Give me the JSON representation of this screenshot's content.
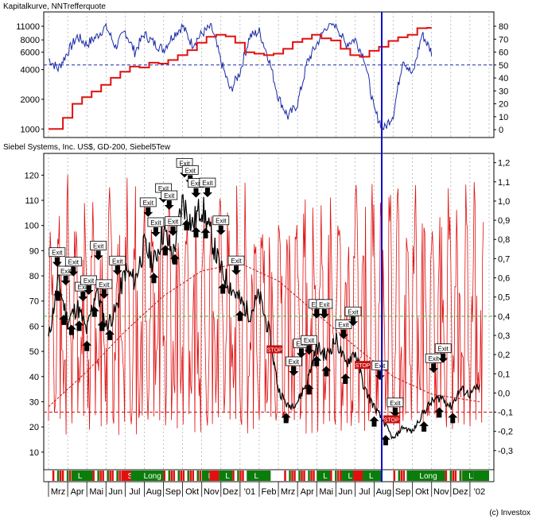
{
  "chart_data": [
    {
      "type": "line",
      "title": "Kapitalkurve, NNTrefferquote",
      "y_left": {
        "scale": "log",
        "range": [
          900,
          14000
        ],
        "ticks": [
          1000,
          2000,
          4000,
          6000,
          8000,
          11000
        ],
        "tick_labels": [
          "1000",
          "2000",
          "4000",
          "6000",
          "8000",
          "11000"
        ]
      },
      "y_right": {
        "range": [
          -3,
          88
        ],
        "ticks": [
          0,
          10,
          20,
          30,
          40,
          50,
          60,
          70,
          80
        ],
        "tick_labels": [
          "0",
          "10",
          "20",
          "30",
          "40",
          "50",
          "60",
          "70",
          "80"
        ]
      },
      "reference_lines": [
        {
          "axis": "right",
          "value": 50,
          "style": "dashed",
          "color": "#1a2aa6"
        }
      ],
      "series": [
        {
          "axis": "left",
          "color": "#e01010",
          "x": [
            0,
            0.5,
            1,
            1.5,
            2,
            2.5,
            3,
            3.5,
            4,
            4.5,
            5,
            5.5,
            6,
            6.5,
            7,
            7.5,
            8,
            8.5,
            9,
            9.5,
            10,
            10.5,
            11,
            11.5,
            12,
            12.5,
            13,
            13.5,
            14,
            14.5,
            15,
            15.5,
            16,
            16.5,
            17,
            17.5,
            18,
            18.5,
            19,
            19.5,
            20
          ],
          "y": [
            1000,
            1000,
            1300,
            1800,
            2100,
            2400,
            2800,
            3300,
            3800,
            4300,
            4200,
            4700,
            4600,
            5000,
            5600,
            6300,
            7500,
            8600,
            9000,
            8700,
            7500,
            6000,
            5800,
            5600,
            5800,
            6500,
            7600,
            8200,
            9000,
            8300,
            7900,
            6500,
            5600,
            5400,
            6200,
            6800,
            7800,
            8500,
            9000,
            10500,
            10600
          ]
        },
        {
          "axis": "right",
          "color": "#1a2aa6",
          "x": [
            0,
            0.5,
            1,
            1.5,
            2,
            2.5,
            3,
            3.5,
            4,
            4.5,
            5,
            5.5,
            6,
            6.5,
            7,
            7.5,
            8,
            8.5,
            9,
            9.5,
            10,
            10.5,
            11,
            11.5,
            12,
            12.5,
            13,
            13.5,
            14,
            14.5,
            15,
            15.5,
            16,
            16.5,
            17,
            17.5,
            18,
            18.5,
            19,
            19.5,
            20
          ],
          "y": [
            55,
            47,
            60,
            72,
            66,
            72,
            80,
            64,
            76,
            60,
            74,
            67,
            62,
            73,
            80,
            66,
            74,
            80,
            53,
            30,
            45,
            72,
            76,
            55,
            25,
            10,
            20,
            52,
            66,
            80,
            82,
            66,
            70,
            55,
            15,
            0,
            12,
            55,
            42,
            74,
            60
          ]
        }
      ]
    },
    {
      "type": "line",
      "title": "Siebel Systems, Inc. US$, GD-200, Siebel5Tew",
      "y_left": {
        "range": [
          3,
          128
        ],
        "ticks": [
          10,
          20,
          30,
          40,
          50,
          60,
          70,
          80,
          90,
          100,
          110,
          120
        ],
        "tick_labels": [
          "10",
          "20",
          "30",
          "40",
          "50",
          "60",
          "70",
          "80",
          "90",
          "100",
          "110",
          "120"
        ]
      },
      "y_right": {
        "range": [
          -0.4,
          1.24
        ],
        "ticks": [
          -0.3,
          -0.2,
          -0.1,
          0,
          0.1,
          0.2,
          0.3,
          0.4,
          0.5,
          0.6,
          0.7,
          0.8,
          0.9,
          1.0,
          1.1,
          1.2
        ],
        "tick_labels": [
          "-0,3",
          "-0,2",
          "-0,1",
          "0,0",
          "0,1",
          "0,2",
          "0,3",
          "0,4",
          "0,5",
          "0,6",
          "0,7",
          "0,8",
          "0,9",
          "1,0",
          "1,1",
          "1,2"
        ]
      },
      "x_labels": [
        "Mrz",
        "Apr",
        "Mai",
        "Jun",
        "Jul",
        "Aug",
        "Sep",
        "Okt",
        "Nov",
        "Dez",
        "'01",
        "Feb",
        "Mrz",
        "Apr",
        "Mai",
        "Jun",
        "Jul",
        "Aug",
        "Sep",
        "Okt",
        "Nov",
        "Dez",
        "'02"
      ],
      "reference_lines": [
        {
          "axis": "right",
          "value": 0.4,
          "style": "dashed",
          "color": "#2bbf2b"
        },
        {
          "axis": "right",
          "value": -0.1,
          "style": "dashed",
          "color": "#c81010"
        }
      ],
      "series": [
        {
          "name": "Siebel Systems, Inc. US$",
          "axis": "left",
          "color": "#000000",
          "x": [
            0,
            0.5,
            1,
            1.5,
            2,
            2.5,
            3,
            3.5,
            4,
            4.5,
            5,
            5.5,
            6,
            6.5,
            7,
            7.5,
            8,
            8.5,
            9,
            9.5,
            10,
            10.5,
            11,
            11.5,
            12,
            12.5,
            13,
            13.5,
            14,
            14.5,
            15,
            15.5,
            16,
            16.5,
            17,
            17.5,
            18,
            18.5,
            19,
            19.5,
            20,
            20.5,
            21,
            21.5,
            22,
            22.5
          ],
          "y": [
            55,
            78,
            62,
            68,
            58,
            75,
            60,
            66,
            82,
            78,
            92,
            85,
            98,
            88,
            110,
            100,
            108,
            95,
            82,
            76,
            70,
            65,
            72,
            58,
            35,
            28,
            30,
            38,
            52,
            48,
            55,
            45,
            50,
            35,
            28,
            22,
            15,
            20,
            18,
            25,
            30,
            32,
            28,
            35,
            33,
            36
          ]
        },
        {
          "name": "GD-200",
          "axis": "left",
          "color": "#c81010",
          "dashed": true,
          "x": [
            0,
            2,
            4,
            6,
            8,
            10,
            12,
            14,
            16,
            18,
            20,
            22.5
          ],
          "y": [
            28,
            42,
            58,
            72,
            82,
            85,
            78,
            65,
            52,
            40,
            33,
            30
          ]
        }
      ],
      "oscillator": {
        "name": "Siebel5Tew",
        "axis": "right",
        "color": "#e01010",
        "oscillation": "high-frequency",
        "min": -0.22,
        "max": 1.15
      },
      "signal_labels": [
        "Exit",
        "STOP",
        "S",
        "L",
        "Long"
      ],
      "signal_bar": {
        "x_range": [
          0,
          23
        ],
        "colors": {
          "L": "#0a7d0a",
          "S": "#e01010",
          "none": "#ffffff"
        },
        "segments": [
          {
            "x0": 0.0,
            "x1": 0.2,
            "state": "none"
          },
          {
            "x0": 0.2,
            "x1": 1.2,
            "state": "mixed"
          },
          {
            "x0": 1.2,
            "x1": 2.3,
            "state": "L",
            "label": "L"
          },
          {
            "x0": 2.3,
            "x1": 3.8,
            "state": "mixed"
          },
          {
            "x0": 3.8,
            "x1": 4.3,
            "state": "S",
            "label": "S"
          },
          {
            "x0": 4.3,
            "x1": 6.0,
            "state": "L",
            "label": "Long"
          },
          {
            "x0": 6.0,
            "x1": 8.0,
            "state": "mixed"
          },
          {
            "x0": 8.0,
            "x1": 8.4,
            "state": "L",
            "label": "L"
          },
          {
            "x0": 8.4,
            "x1": 8.9,
            "state": "S"
          },
          {
            "x0": 8.9,
            "x1": 9.6,
            "state": "L",
            "label": "L"
          },
          {
            "x0": 9.6,
            "x1": 10.4,
            "state": "mixed"
          },
          {
            "x0": 10.4,
            "x1": 11.6,
            "state": "L",
            "label": "L"
          },
          {
            "x0": 11.6,
            "x1": 12.3,
            "state": "none"
          },
          {
            "x0": 12.3,
            "x1": 14.0,
            "state": "mixed"
          },
          {
            "x0": 14.0,
            "x1": 14.7,
            "state": "L",
            "label": "L"
          },
          {
            "x0": 14.7,
            "x1": 15.3,
            "state": "mixed"
          },
          {
            "x0": 15.3,
            "x1": 15.9,
            "state": "L",
            "label": "L"
          },
          {
            "x0": 15.9,
            "x1": 16.4,
            "state": "S"
          },
          {
            "x0": 16.4,
            "x1": 17.4,
            "state": "L",
            "label": "L"
          },
          {
            "x0": 17.4,
            "x1": 18.0,
            "state": "none"
          },
          {
            "x0": 18.0,
            "x1": 18.7,
            "state": "mixed"
          },
          {
            "x0": 18.7,
            "x1": 20.7,
            "state": "L",
            "label": "Long"
          },
          {
            "x0": 20.7,
            "x1": 21.6,
            "state": "mixed"
          },
          {
            "x0": 21.6,
            "x1": 22.2,
            "state": "L",
            "label": "L"
          },
          {
            "x0": 22.2,
            "x1": 23.0,
            "state": "L"
          }
        ]
      }
    }
  ],
  "copyright": "(c) Investox",
  "colors": {
    "equity": "#e01010",
    "hit_rate": "#1a2aa6",
    "price": "#000000",
    "oscillator": "#e01010",
    "marker": "#1a2aa6",
    "grid": "#9a9a9a"
  }
}
